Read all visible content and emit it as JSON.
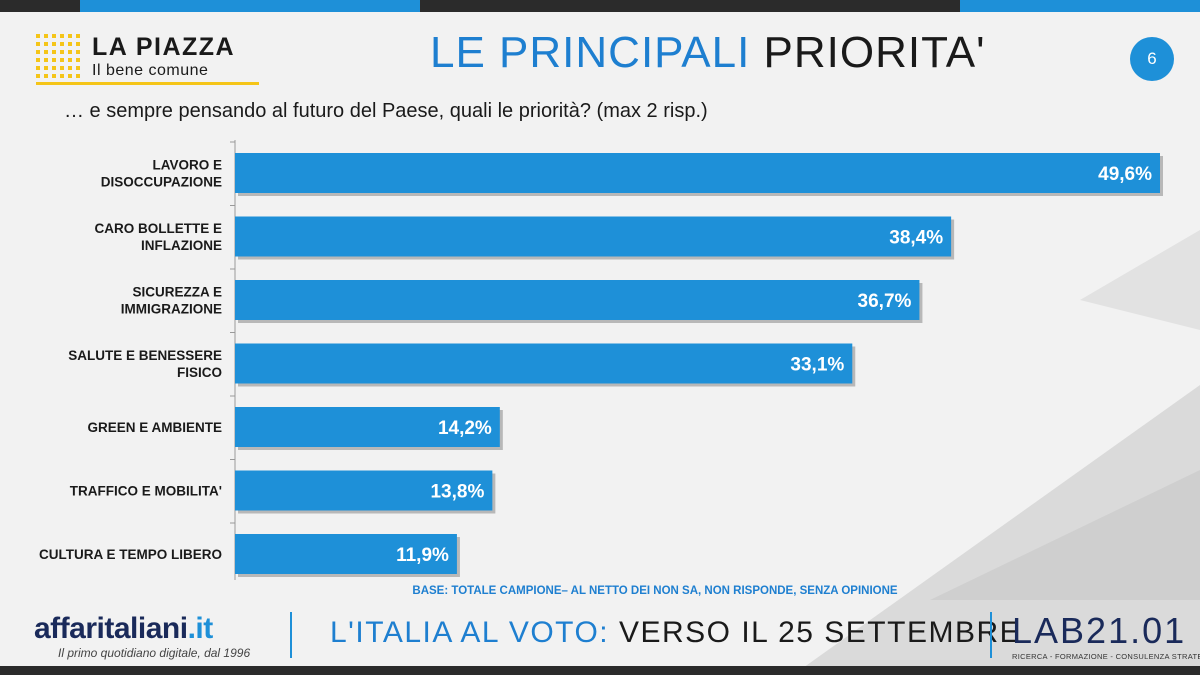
{
  "header": {
    "brand": "LA PIAZZA",
    "brand_sub": "Il bene comune",
    "title_part1": "LE PRINCIPALI",
    "title_part2": "PRIORITA'",
    "page": "6"
  },
  "colors": {
    "accent_blue": "#1e90d8",
    "title_blue": "#1e7fd0",
    "logo_yellow": "#f5c518",
    "dark": "#1a1a1a"
  },
  "chart_data": {
    "type": "bar",
    "orientation": "horizontal",
    "title": "… e sempre pensando al futuro del Paese, quali le priorità? (max 2 risp.)",
    "categories": [
      [
        "LAVORO E",
        "DISOCCUPAZIONE"
      ],
      [
        "CARO BOLLETTE E",
        "INFLAZIONE"
      ],
      [
        "SICUREZZA E",
        "IMMIGRAZIONE"
      ],
      [
        "SALUTE E BENESSERE",
        "FISICO"
      ],
      [
        "GREEN E AMBIENTE"
      ],
      [
        "TRAFFICO E MOBILITA'"
      ],
      [
        "CULTURA E TEMPO LIBERO"
      ]
    ],
    "values": [
      49.6,
      38.4,
      36.7,
      33.1,
      14.2,
      13.8,
      11.9
    ],
    "labels": [
      "49,6%",
      "38,4%",
      "36,7%",
      "33,1%",
      "14,2%",
      "13,8%",
      "11,9%"
    ],
    "xlim": [
      0,
      49.6
    ],
    "grid": false,
    "legend": "none",
    "note": "BASE: TOTALE CAMPIONE– AL NETTO DEI NON SA, NON RISPONDE, SENZA OPINIONE"
  },
  "footer": {
    "brand_name": "affaritaliani",
    "brand_domain": ".it",
    "tagline": "Il primo quotidiano digitale, dal 1996",
    "title_part1": "L'ITALIA AL VOTO:",
    "title_part2": "VERSO IL 25 SETTEMBRE",
    "lab_name": "LAB21.01",
    "lab_tagline": "RICERCA - FORMAZIONE - CONSULENZA STRATEGICA"
  }
}
